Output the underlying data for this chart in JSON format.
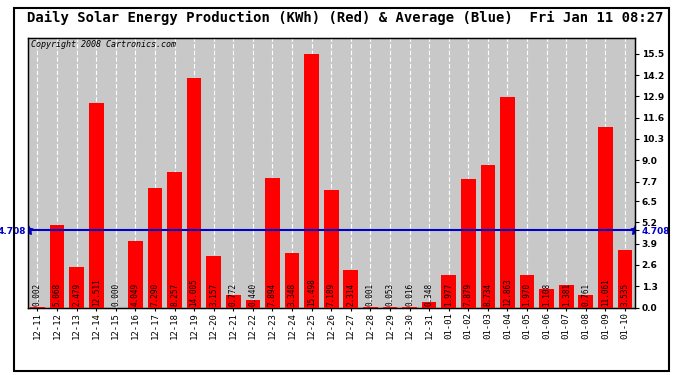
{
  "title": "Daily Solar Energy Production (KWh) (Red) & Average (Blue)  Fri Jan 11 08:27",
  "copyright": "Copyright 2008 Cartronics.com",
  "average": 4.708,
  "categories": [
    "12-11",
    "12-12",
    "12-13",
    "12-14",
    "12-15",
    "12-16",
    "12-17",
    "12-18",
    "12-19",
    "12-20",
    "12-21",
    "12-22",
    "12-23",
    "12-24",
    "12-25",
    "12-26",
    "12-27",
    "12-28",
    "12-29",
    "12-30",
    "12-31",
    "01-01",
    "01-02",
    "01-03",
    "01-04",
    "01-05",
    "01-06",
    "01-07",
    "01-08",
    "01-09",
    "01-10"
  ],
  "values": [
    0.002,
    5.068,
    2.479,
    12.511,
    0.0,
    4.049,
    7.29,
    8.257,
    14.005,
    3.157,
    0.772,
    0.44,
    7.894,
    3.348,
    15.498,
    7.189,
    2.314,
    0.001,
    0.053,
    0.016,
    0.348,
    1.977,
    7.879,
    8.734,
    12.863,
    1.97,
    1.108,
    1.381,
    0.761,
    11.061,
    3.535
  ],
  "bar_color": "#ff0000",
  "avg_line_color": "#0000cc",
  "bg_color": "#ffffff",
  "plot_bg_color": "#c8c8c8",
  "grid_color": "#ffffff",
  "border_color": "#000000",
  "text_color": "#000000",
  "ylim": [
    0.0,
    16.5
  ],
  "yticks_right": [
    0.0,
    1.3,
    2.6,
    3.9,
    5.2,
    6.5,
    7.7,
    9.0,
    10.3,
    11.6,
    12.9,
    14.2,
    15.5
  ],
  "title_fontsize": 10,
  "tick_fontsize": 6.5,
  "value_fontsize": 5.5,
  "copyright_fontsize": 6
}
